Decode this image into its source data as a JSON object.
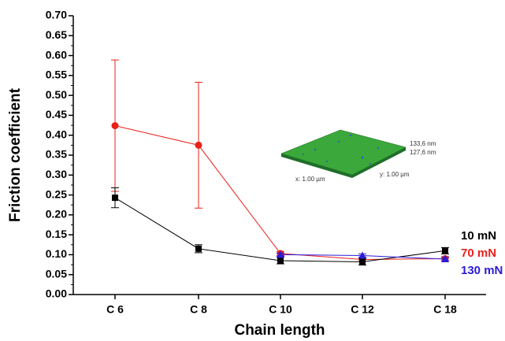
{
  "chart_data": {
    "type": "line",
    "x_label": "Chain length",
    "y_label": "Friction coefficient",
    "categories": [
      "C 6",
      "C 8",
      "C 10",
      "C 12",
      "C 18"
    ],
    "ylim": [
      0,
      0.7
    ],
    "yticks": [
      {
        "value": 0,
        "label": "0.00"
      },
      0.05,
      {
        "value": 0.1,
        "label": "0.10"
      },
      0.15,
      {
        "value": 0.2,
        "label": "0.20"
      },
      0.25,
      {
        "value": 0.3,
        "label": "0.30"
      },
      0.35,
      {
        "value": 0.4,
        "label": "0.40"
      },
      0.45,
      {
        "value": 0.5,
        "label": "0.50"
      },
      0.55,
      {
        "value": 0.6,
        "label": "0.60"
      },
      0.65,
      {
        "value": 0.7,
        "label": "0.70"
      }
    ],
    "legend_position": "right",
    "series": [
      {
        "name": "70 mN",
        "color": "#e8211b",
        "marker": "circle",
        "values": [
          0.424,
          0.375,
          0.103,
          0.088,
          0.09
        ],
        "errors": [
          0.165,
          0.158,
          0.005,
          0.005,
          0.005
        ]
      },
      {
        "name": "10 mN",
        "color": "#000000",
        "marker": "square",
        "values": [
          0.243,
          0.115,
          0.085,
          0.082,
          0.11
        ],
        "errors": [
          0.025,
          0.01,
          0.008,
          0.008,
          0.008
        ]
      },
      {
        "name": "130 mN",
        "color": "#2b1bd6",
        "marker": "triangle",
        "values": [
          null,
          null,
          0.1,
          0.098,
          0.089
        ],
        "errors": [
          null,
          null,
          0.004,
          0.004,
          0.004
        ]
      }
    ],
    "legend_order": [
      "10 mN",
      "70 mN",
      "130 mN"
    ],
    "inset": {
      "labels": [
        "133,6 nm",
        "127,6 nm",
        "x: 1.00 µm",
        "y: 1.00 µm"
      ]
    }
  }
}
